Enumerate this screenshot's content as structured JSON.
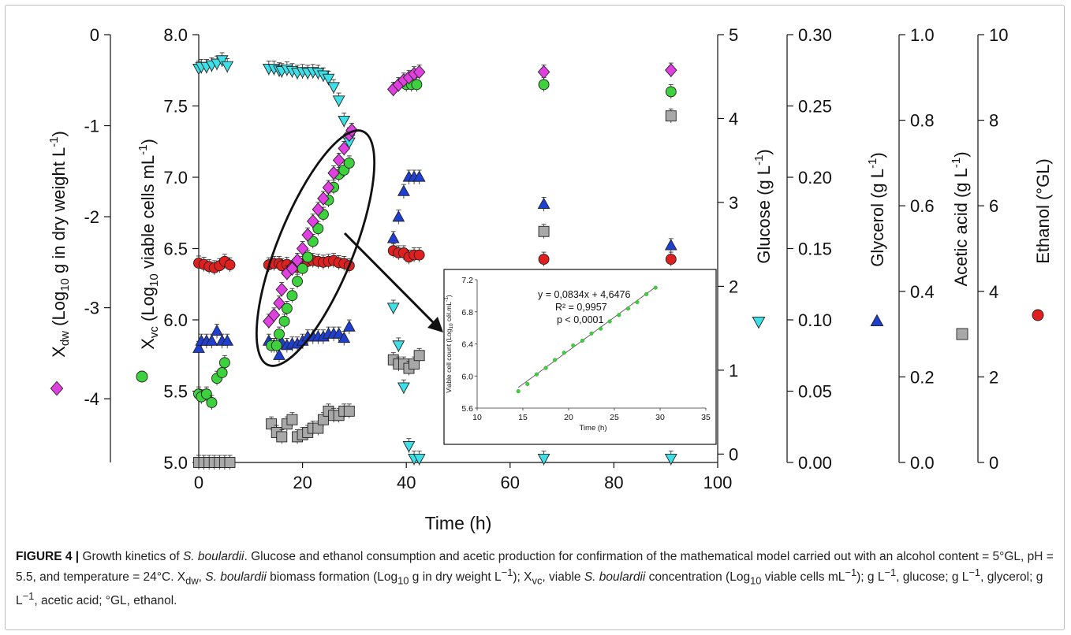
{
  "chart_data": {
    "type": "scatter",
    "xlabel": "Time (h)",
    "xlim": [
      0,
      100
    ],
    "xticks": [
      0,
      20,
      40,
      60,
      80,
      100
    ],
    "axes": [
      {
        "id": "xdw",
        "label_main": "X",
        "label_sub": "dw",
        "label_rest": " (Log",
        "label_sub2": "10",
        "label_tail": " g in dry weight L",
        "label_sup": "-1",
        "label_close": ")",
        "ylim": [
          -4.7,
          0
        ],
        "ticks": [
          "0",
          "-1",
          "-2",
          "-3",
          "-4"
        ],
        "tick_values": [
          0,
          -1,
          -2,
          -3,
          -4
        ]
      },
      {
        "id": "xvc",
        "label_main": "X",
        "label_sub": "vc",
        "label_rest": " (Log",
        "label_sub2": "10",
        "label_tail": " viable cells mL",
        "label_sup": "-1",
        "label_close": ")",
        "ylim": [
          5.0,
          8.0
        ],
        "ticks": [
          "5.0",
          "5.5",
          "6.0",
          "6.5",
          "7.0",
          "7.5",
          "8.0"
        ],
        "tick_values": [
          5.0,
          5.5,
          6.0,
          6.5,
          7.0,
          7.5,
          8.0
        ]
      },
      {
        "id": "glucose",
        "label": "Glucose (g L",
        "label_sup": "-1",
        "label_close": ")",
        "ylim": [
          -0.1,
          5
        ],
        "ticks": [
          "0",
          "1",
          "2",
          "3",
          "4",
          "5"
        ],
        "tick_values": [
          0,
          1,
          2,
          3,
          4,
          5
        ]
      },
      {
        "id": "glycerol",
        "label": "Glycerol (g L",
        "label_sup": "-1",
        "label_close": ")",
        "ylim": [
          0,
          0.3
        ],
        "ticks": [
          "0.00",
          "0.05",
          "0.10",
          "0.15",
          "0.20",
          "0.25",
          "0.30"
        ],
        "tick_values": [
          0,
          0.05,
          0.1,
          0.15,
          0.2,
          0.25,
          0.3
        ]
      },
      {
        "id": "acetic",
        "label": "Acetic acid (g L",
        "label_sup": "-1",
        "label_close": ")",
        "ylim": [
          0,
          1.0
        ],
        "ticks": [
          "0.0",
          "0.2",
          "0.4",
          "0.6",
          "0.8",
          "1.0"
        ],
        "tick_values": [
          0,
          0.2,
          0.4,
          0.6,
          0.8,
          1.0
        ]
      },
      {
        "id": "ethanol",
        "label": "Ethanol (°GL)",
        "ylim": [
          0,
          10
        ],
        "ticks": [
          "0",
          "2",
          "4",
          "6",
          "8",
          "10"
        ],
        "tick_values": [
          0,
          2,
          4,
          6,
          8,
          10
        ]
      }
    ],
    "series": [
      {
        "axis": "xdw",
        "marker": "diamond",
        "color": "#e040e0",
        "points": [
          [
            13.5,
            -3.15
          ],
          [
            14.5,
            -3.08
          ],
          [
            15.5,
            -2.95
          ],
          [
            16,
            -2.8
          ],
          [
            17,
            -2.62
          ],
          [
            18,
            -2.57
          ],
          [
            19,
            -2.48
          ],
          [
            20,
            -2.35
          ],
          [
            21,
            -2.2
          ],
          [
            22,
            -2.05
          ],
          [
            23,
            -1.92
          ],
          [
            24,
            -1.8
          ],
          [
            25,
            -1.68
          ],
          [
            26,
            -1.52
          ],
          [
            27,
            -1.38
          ],
          [
            28,
            -1.25
          ],
          [
            29,
            -1.1
          ],
          [
            29.5,
            -1.05
          ],
          [
            37.5,
            -0.6
          ],
          [
            38.5,
            -0.55
          ],
          [
            39.5,
            -0.5
          ],
          [
            40.5,
            -0.47
          ],
          [
            41.5,
            -0.43
          ],
          [
            42.5,
            -0.41
          ],
          [
            66.5,
            -0.41
          ],
          [
            91,
            -0.39
          ]
        ]
      },
      {
        "axis": "xvc",
        "marker": "circle",
        "color": "#3dd13d",
        "points": [
          [
            0,
            5.48
          ],
          [
            0.5,
            5.46
          ],
          [
            1.5,
            5.48
          ],
          [
            2.5,
            5.42
          ],
          [
            3.5,
            5.59
          ],
          [
            4.5,
            5.63
          ],
          [
            5,
            5.7
          ],
          [
            14,
            5.82
          ],
          [
            15,
            5.82
          ],
          [
            15.5,
            5.9
          ],
          [
            16.5,
            5.99
          ],
          [
            17,
            6.08
          ],
          [
            18,
            6.17
          ],
          [
            19,
            6.27
          ],
          [
            20,
            6.36
          ],
          [
            21,
            6.44
          ],
          [
            22,
            6.55
          ],
          [
            23,
            6.64
          ],
          [
            24,
            6.74
          ],
          [
            25,
            6.84
          ],
          [
            26,
            6.93
          ],
          [
            27,
            7.02
          ],
          [
            28,
            7.05
          ],
          [
            29,
            7.1
          ],
          [
            40,
            7.65
          ],
          [
            41,
            7.65
          ],
          [
            42,
            7.65
          ],
          [
            66.5,
            7.65
          ],
          [
            91,
            7.6
          ]
        ]
      },
      {
        "axis": "glucose",
        "marker": "triangle-down",
        "color": "#3ee0e8",
        "points": [
          [
            0,
            4.6
          ],
          [
            0.5,
            4.62
          ],
          [
            1.5,
            4.62
          ],
          [
            2.5,
            4.64
          ],
          [
            3.5,
            4.66
          ],
          [
            4.5,
            4.7
          ],
          [
            5.5,
            4.63
          ],
          [
            13.5,
            4.6
          ],
          [
            14.5,
            4.6
          ],
          [
            15.5,
            4.58
          ],
          [
            16,
            4.57
          ],
          [
            17,
            4.59
          ],
          [
            18,
            4.57
          ],
          [
            19,
            4.55
          ],
          [
            20,
            4.56
          ],
          [
            21,
            4.55
          ],
          [
            22,
            4.56
          ],
          [
            23,
            4.55
          ],
          [
            24,
            4.52
          ],
          [
            25,
            4.48
          ],
          [
            26,
            4.38
          ],
          [
            27,
            4.22
          ],
          [
            28,
            3.98
          ],
          [
            29,
            3.72
          ],
          [
            37.5,
            1.75
          ],
          [
            38.5,
            1.3
          ],
          [
            39.5,
            0.8
          ],
          [
            40.5,
            0.1
          ],
          [
            41.5,
            -0.05
          ],
          [
            42.5,
            -0.05
          ],
          [
            66.5,
            -0.05
          ],
          [
            91,
            -0.05
          ]
        ]
      },
      {
        "axis": "glycerol",
        "marker": "triangle-up",
        "color": "#1f3fd1",
        "points": [
          [
            0,
            0.08
          ],
          [
            0.5,
            0.085
          ],
          [
            1.5,
            0.085
          ],
          [
            2.5,
            0.085
          ],
          [
            3.5,
            0.092
          ],
          [
            4.5,
            0.085
          ],
          [
            5.5,
            0.085
          ],
          [
            13.5,
            0.085
          ],
          [
            14.5,
            0.082
          ],
          [
            15.5,
            0.075
          ],
          [
            16,
            0.084
          ],
          [
            17,
            0.082
          ],
          [
            18,
            0.083
          ],
          [
            19,
            0.083
          ],
          [
            20,
            0.085
          ],
          [
            21,
            0.088
          ],
          [
            22,
            0.088
          ],
          [
            23,
            0.088
          ],
          [
            24,
            0.088
          ],
          [
            25,
            0.09
          ],
          [
            26,
            0.09
          ],
          [
            27,
            0.09
          ],
          [
            28,
            0.087
          ],
          [
            29,
            0.095
          ],
          [
            37.5,
            0.157
          ],
          [
            38.5,
            0.172
          ],
          [
            39.5,
            0.19
          ],
          [
            40.5,
            0.2
          ],
          [
            41.5,
            0.2
          ],
          [
            42.5,
            0.2
          ],
          [
            66.5,
            0.181
          ],
          [
            91,
            0.152
          ]
        ]
      },
      {
        "axis": "acetic",
        "marker": "square",
        "color": "#a8a8a8",
        "points": [
          [
            0,
            0.0
          ],
          [
            1,
            0.0
          ],
          [
            2,
            0.0
          ],
          [
            3,
            0.0
          ],
          [
            4,
            0.0
          ],
          [
            5,
            0.0
          ],
          [
            6,
            0.0
          ],
          [
            14,
            0.09
          ],
          [
            15,
            0.07
          ],
          [
            16,
            0.06
          ],
          [
            17,
            0.09
          ],
          [
            18,
            0.1
          ],
          [
            19,
            0.06
          ],
          [
            20,
            0.065
          ],
          [
            21,
            0.07
          ],
          [
            22,
            0.08
          ],
          [
            23,
            0.08
          ],
          [
            24,
            0.1
          ],
          [
            25,
            0.12
          ],
          [
            26,
            0.11
          ],
          [
            27,
            0.11
          ],
          [
            28,
            0.12
          ],
          [
            29,
            0.12
          ],
          [
            37.5,
            0.24
          ],
          [
            38.5,
            0.23
          ],
          [
            39.5,
            0.23
          ],
          [
            40.5,
            0.22
          ],
          [
            41.5,
            0.23
          ],
          [
            42.5,
            0.25
          ],
          [
            66.5,
            0.54
          ],
          [
            91,
            0.81
          ]
        ]
      },
      {
        "axis": "ethanol",
        "marker": "circle",
        "color": "#e01f1f",
        "points": [
          [
            0,
            4.66
          ],
          [
            1,
            4.63
          ],
          [
            2,
            4.58
          ],
          [
            3,
            4.55
          ],
          [
            4,
            4.6
          ],
          [
            5,
            4.7
          ],
          [
            6,
            4.62
          ],
          [
            13.5,
            4.62
          ],
          [
            14.5,
            4.65
          ],
          [
            15.5,
            4.65
          ],
          [
            16,
            4.6
          ],
          [
            17,
            4.63
          ],
          [
            18,
            4.55
          ],
          [
            19,
            4.56
          ],
          [
            20,
            4.65
          ],
          [
            21,
            4.7
          ],
          [
            22,
            4.72
          ],
          [
            23,
            4.7
          ],
          [
            24,
            4.68
          ],
          [
            25,
            4.7
          ],
          [
            26,
            4.72
          ],
          [
            27,
            4.67
          ],
          [
            28,
            4.65
          ],
          [
            29,
            4.6
          ],
          [
            37.5,
            4.95
          ],
          [
            38.5,
            4.9
          ],
          [
            39.5,
            4.9
          ],
          [
            40.5,
            4.8
          ],
          [
            41.5,
            4.85
          ],
          [
            42.5,
            4.85
          ],
          [
            66.5,
            4.75
          ],
          [
            91,
            4.75
          ]
        ]
      }
    ],
    "inset": {
      "equation": "y = 0,0834x + 4,6476",
      "r2": "R² = 0,9957",
      "p": "p < 0,0001",
      "xlabel": "Time (h)",
      "ylabel": "Viable cell count (Log",
      "ylabel_sub": "10",
      "ylabel_tail": " cél.mL",
      "ylabel_sup": "-1",
      "ylabel_close": ")",
      "xlim": [
        10,
        35
      ],
      "ylim": [
        5.6,
        7.2
      ],
      "xticks": [
        "10",
        "15",
        "20",
        "25",
        "30",
        "35"
      ],
      "xtick_values": [
        10,
        15,
        20,
        25,
        30,
        35
      ],
      "yticks": [
        "5.6",
        "6.0",
        "6.4",
        "6.8",
        "7.2"
      ],
      "ytick_values": [
        5.6,
        6.0,
        6.4,
        6.8,
        7.2
      ],
      "color": "#3dd13d",
      "points": [
        [
          14.5,
          5.81
        ],
        [
          15.5,
          5.9
        ],
        [
          16.5,
          6.02
        ],
        [
          17.5,
          6.1
        ],
        [
          18.5,
          6.2
        ],
        [
          19.5,
          6.29
        ],
        [
          20.5,
          6.38
        ],
        [
          21.5,
          6.44
        ],
        [
          22.5,
          6.53
        ],
        [
          23.5,
          6.59
        ],
        [
          24.5,
          6.68
        ],
        [
          25.5,
          6.76
        ],
        [
          26.5,
          6.84
        ],
        [
          27.5,
          6.92
        ],
        [
          28.5,
          7.02
        ],
        [
          29.5,
          7.1
        ]
      ]
    }
  },
  "caption": {
    "label": "FIGURE 4 |",
    "text_1": " Growth kinetics of ",
    "species_1": "S. boulardii",
    "text_2": ". Glucose and ethanol consumption and acetic production for confirmation of the mathematical model carried out with an alcohol content = 5°GL, pH = 5.5, and temperature = 24°C. X",
    "sub_dw": "dw",
    "text_3": ", ",
    "species_2": "S. boulardii",
    "text_4": " biomass formation (Log",
    "sub_10a": "10",
    "text_5": " g in dry weight L",
    "sup_1": "−1",
    "text_6": "); X",
    "sub_vc": "vc",
    "text_7": ", viable ",
    "species_3": "S. boulardii",
    "text_8": " concentration (Log",
    "sub_10b": "10",
    "text_9": " viable cells mL",
    "sup_2": "−1",
    "text_10": "); g L",
    "sup_3": "−1",
    "text_11": ", glucose; g L",
    "sup_4": "−1",
    "text_12": ", glycerol; g L",
    "sup_5": "−1",
    "text_13": ", acetic acid; °GL, ethanol."
  }
}
